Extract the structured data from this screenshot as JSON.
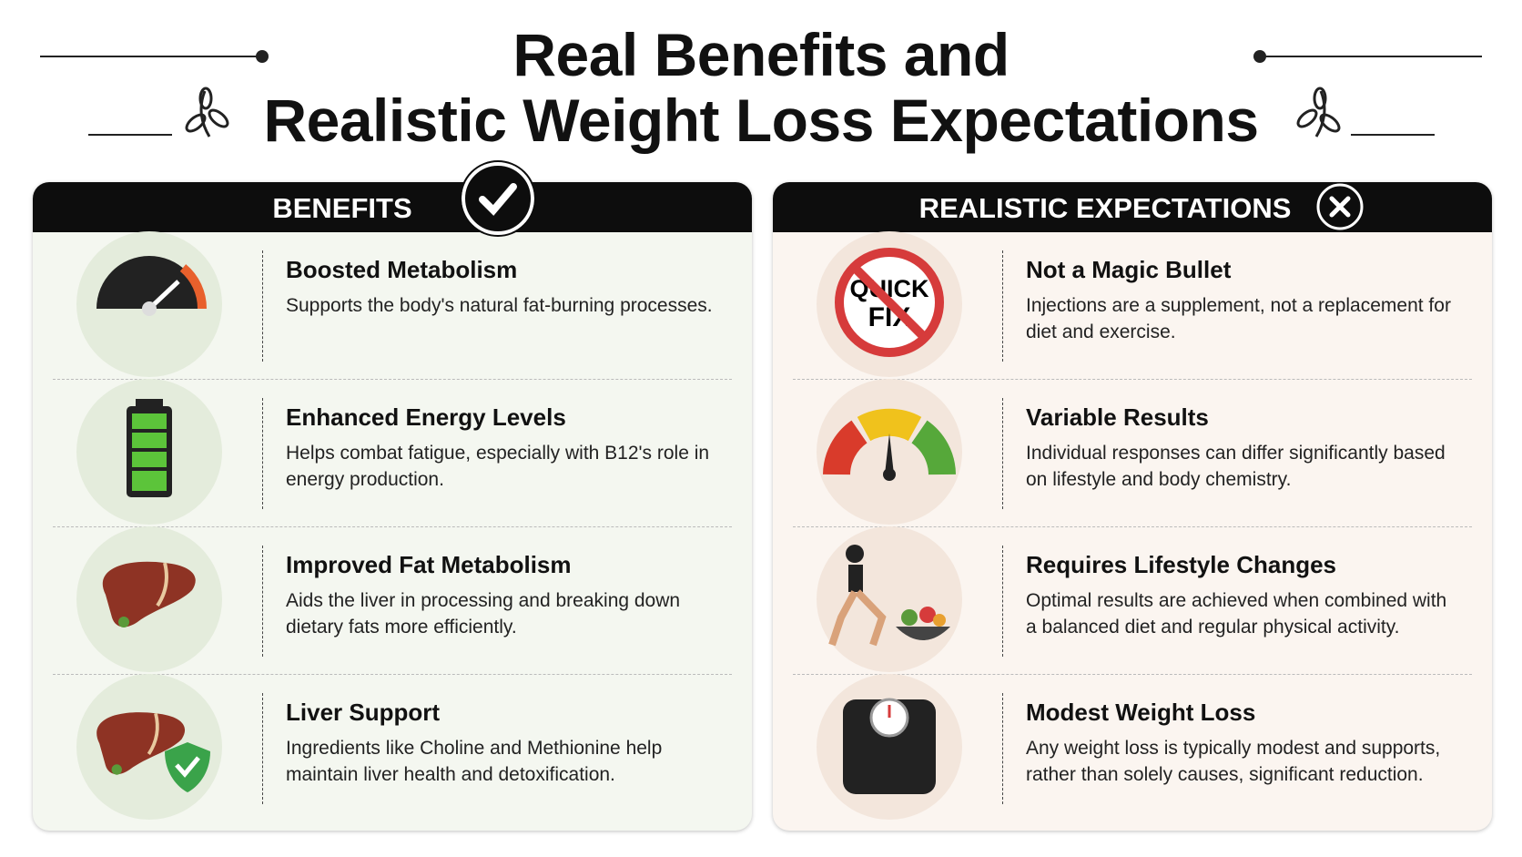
{
  "title": {
    "line1": "Real Benefits and",
    "line2": "Realistic Weight Loss Expectations"
  },
  "benefits": {
    "heading": "BENEFITS",
    "items": [
      {
        "title": "Boosted Metabolism",
        "text": "Supports the body's natural fat-burning processes."
      },
      {
        "title": "Enhanced Energy Levels",
        "text": "Helps combat fatigue, especially with B12's role in energy production."
      },
      {
        "title": "Improved Fat Metabolism",
        "text": "Aids the liver in processing and breaking down dietary fats more efficiently."
      },
      {
        "title": "Liver Support",
        "text": "Ingredients like Choline and Methionine help maintain liver health and detoxification."
      }
    ]
  },
  "expectations": {
    "heading": "REALISTIC EXPECTATIONS",
    "items": [
      {
        "title": "Not a Magic Bullet",
        "text": "Injections are a supplement, not a replacement for diet and exercise.",
        "icon_text": [
          "QUICK",
          "FIX"
        ]
      },
      {
        "title": "Variable Results",
        "text": "Individual responses can differ significantly based on lifestyle and body chemistry."
      },
      {
        "title": "Requires Lifestyle Changes",
        "text": "Optimal results are achieved when combined with a balanced diet and regular physical activity."
      },
      {
        "title": "Modest Weight Loss",
        "text": "Any weight loss is typically modest and supports, rather than solely causes, significant reduction."
      }
    ]
  }
}
